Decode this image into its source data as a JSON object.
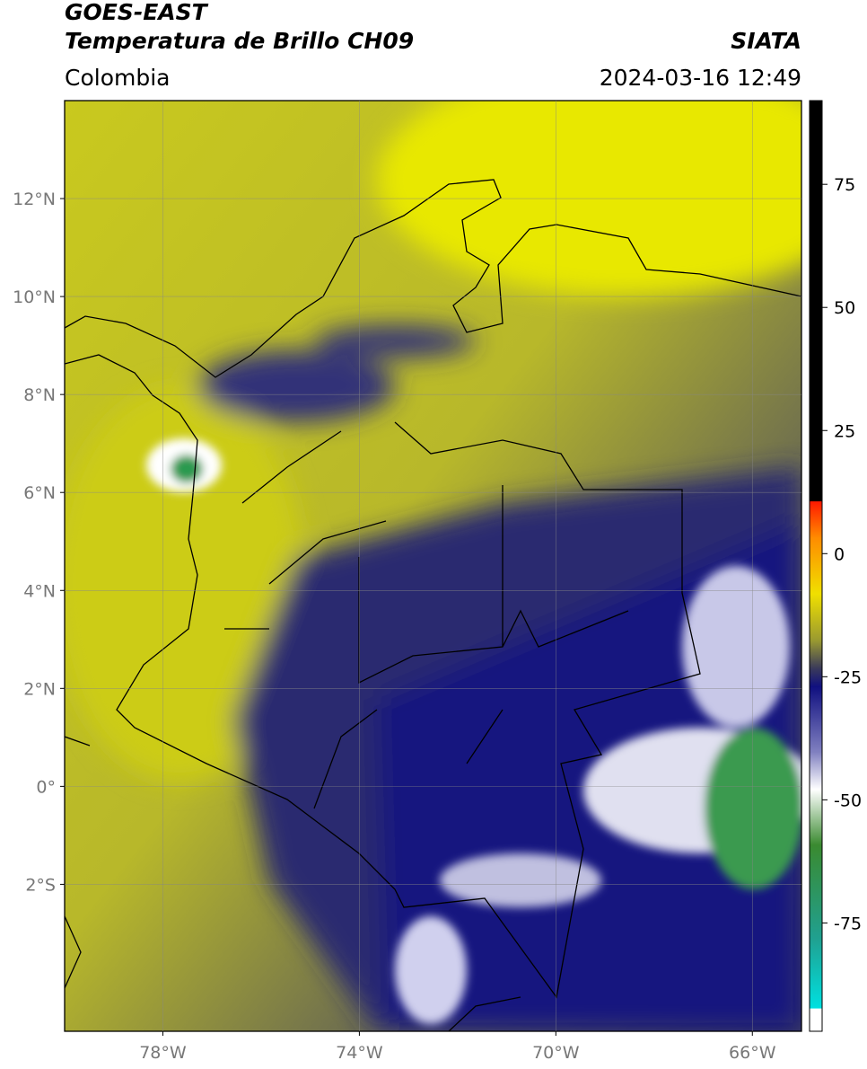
{
  "header": {
    "source": "GOES-EAST",
    "product": "Temperatura de Brillo CH09",
    "agency": "SIATA",
    "region": "Colombia",
    "datetime": "2024-03-16 12:49"
  },
  "map": {
    "xlim": [
      -80,
      -65
    ],
    "ylim": [
      -5,
      14
    ],
    "xticks": [
      {
        "value": -78,
        "label": "78°W"
      },
      {
        "value": -74,
        "label": "74°W"
      },
      {
        "value": -70,
        "label": "70°W"
      },
      {
        "value": -66,
        "label": "66°W"
      }
    ],
    "yticks": [
      {
        "value": -2,
        "label": "2°S"
      },
      {
        "value": 0,
        "label": "0°"
      },
      {
        "value": 2,
        "label": "2°N"
      },
      {
        "value": 4,
        "label": "4°N"
      },
      {
        "value": 6,
        "label": "6°N"
      },
      {
        "value": 8,
        "label": "8°N"
      },
      {
        "value": 10,
        "label": "10°N"
      },
      {
        "value": 12,
        "label": "12°N"
      }
    ],
    "grid": true
  },
  "colorbar": {
    "ylim": [
      -97,
      92
    ],
    "ticks": [
      75,
      50,
      25,
      0,
      -25,
      -50,
      -75
    ]
  }
}
